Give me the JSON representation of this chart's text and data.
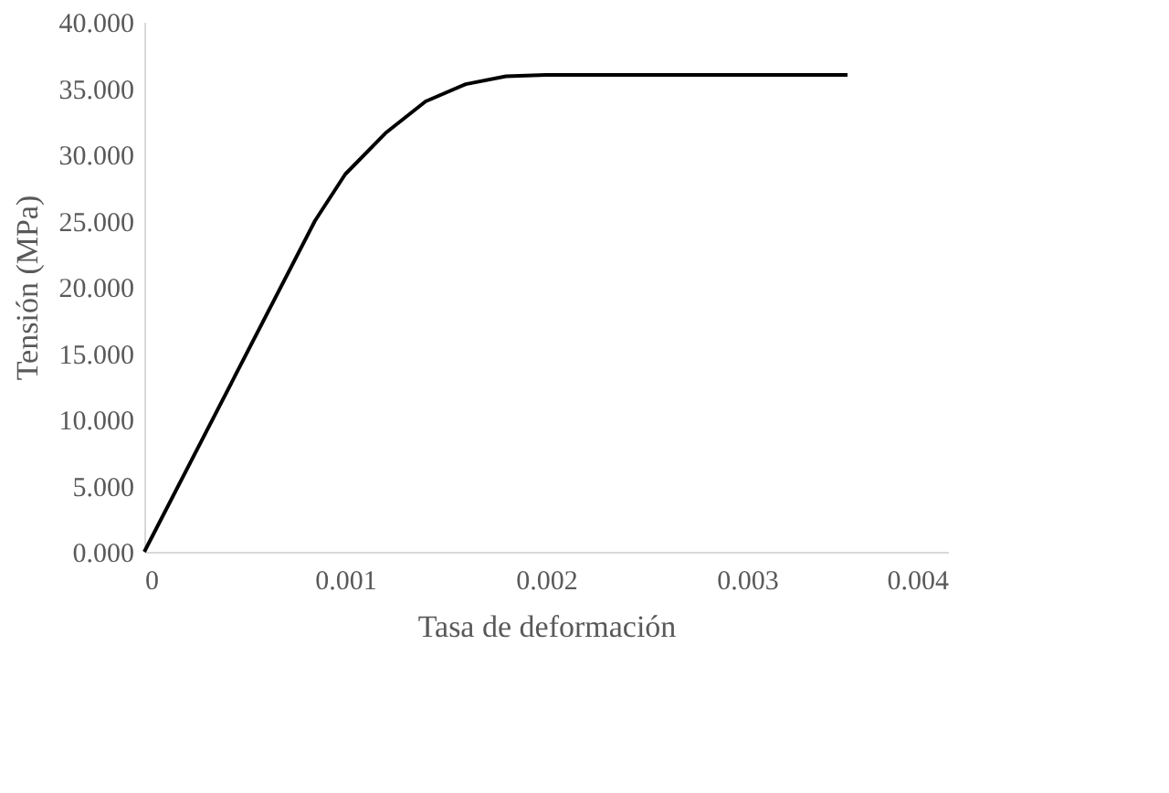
{
  "chart_data": {
    "type": "line",
    "xlabel": "Tasa de deformación",
    "ylabel": "Tensión (MPa)",
    "x": [
      0,
      0.00085,
      0.001,
      0.0012,
      0.0014,
      0.0016,
      0.0018,
      0.002,
      0.0035
    ],
    "series": [
      {
        "color": "#000000",
        "values": [
          0,
          25,
          28.5,
          31.6,
          34.0,
          35.3,
          35.9,
          36,
          36
        ]
      }
    ],
    "xlim": [
      0,
      0.004
    ],
    "xticks": [
      {
        "value": 0,
        "label": "0"
      },
      0.001,
      0.002,
      0.003,
      0.004
    ],
    "ylim": [
      0,
      40
    ],
    "yticks": [
      {
        "value": 0,
        "label": "0.000"
      },
      {
        "value": 5,
        "label": "5.000"
      },
      {
        "value": 10,
        "label": "10.000"
      },
      {
        "value": 15,
        "label": "15.000"
      },
      {
        "value": 20,
        "label": "20.000"
      },
      {
        "value": 25,
        "label": "25.000"
      },
      {
        "value": 30,
        "label": "30.000"
      },
      {
        "value": 35,
        "label": "35.000"
      },
      {
        "value": 40,
        "label": "40.000"
      }
    ],
    "grid": false,
    "marker": "none",
    "line_style": "solid"
  }
}
